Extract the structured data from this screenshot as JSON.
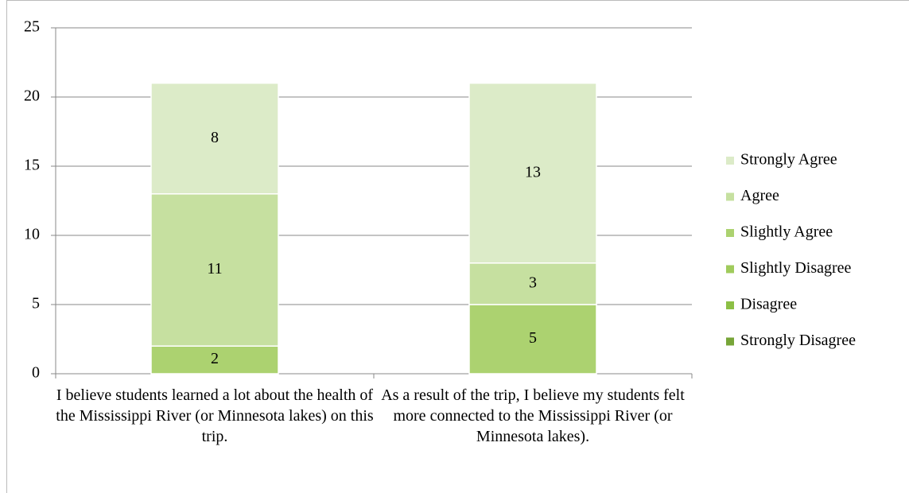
{
  "chart_data": {
    "type": "stacked_bar",
    "categories": [
      "I believe students learned a lot about the health of the Mississippi River (or Minnesota lakes) on this trip.",
      "As a result of the trip, I believe my students felt more connected to the Mississippi River (or Minnesota lakes)."
    ],
    "series": [
      {
        "name": "Strongly Disagree",
        "color": "#77a538",
        "values": [
          0,
          0
        ]
      },
      {
        "name": "Disagree",
        "color": "#8cbf45",
        "values": [
          0,
          0
        ]
      },
      {
        "name": "Slightly Disagree",
        "color": "#a0cb5c",
        "values": [
          0,
          0
        ]
      },
      {
        "name": "Slightly Agree",
        "color": "#acd270",
        "values": [
          2,
          5
        ]
      },
      {
        "name": "Agree",
        "color": "#c6e0a0",
        "values": [
          11,
          3
        ]
      },
      {
        "name": "Strongly Agree",
        "color": "#dcebc8",
        "values": [
          8,
          13
        ]
      }
    ],
    "ylim": [
      0,
      25
    ],
    "yticks": [
      0,
      5,
      10,
      15,
      20,
      25
    ],
    "grid": true,
    "legend": "right"
  }
}
